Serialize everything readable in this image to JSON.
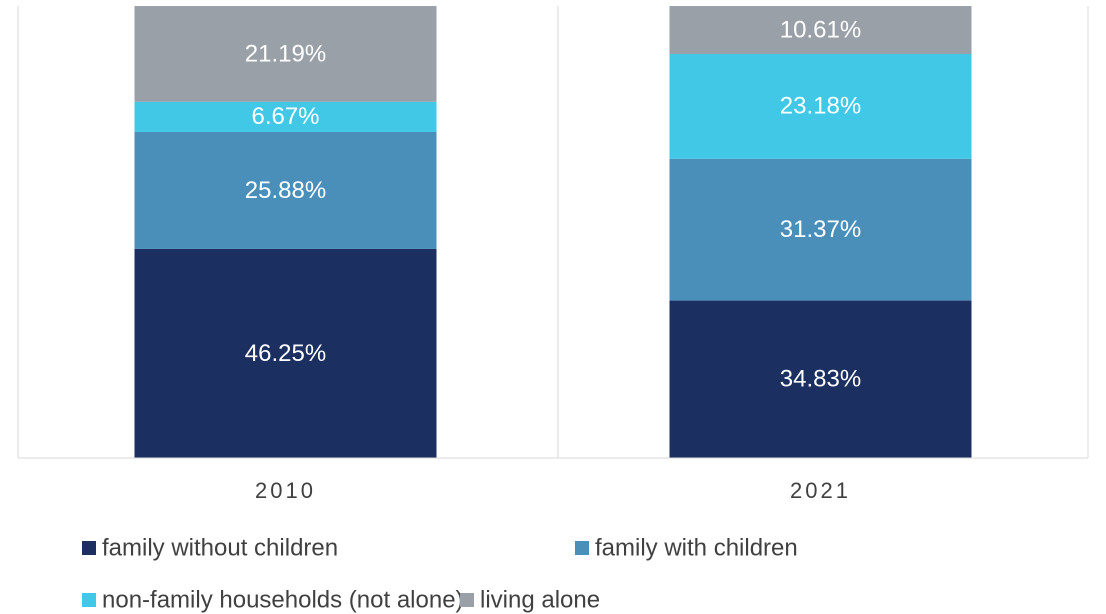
{
  "chart_data": {
    "type": "stacked_bar",
    "categories": [
      "2010",
      "2021"
    ],
    "ylim": [
      0,
      100
    ],
    "series": [
      {
        "name": "family without children",
        "color": "#1b3060",
        "values": [
          46.25,
          34.83
        ],
        "value_labels": [
          "46.25%",
          "34.83%"
        ]
      },
      {
        "name": "family with children",
        "color": "#4a8fb9",
        "values": [
          25.88,
          31.37
        ],
        "value_labels": [
          "25.88%",
          "31.37%"
        ]
      },
      {
        "name": "non-family households (not alone)",
        "color": "#41c8e6",
        "values": [
          6.67,
          23.18
        ],
        "value_labels": [
          "6.67%",
          "23.18%"
        ]
      },
      {
        "name": "living alone",
        "color": "#9aa0a8",
        "values": [
          21.19,
          10.61
        ],
        "value_labels": [
          "21.19%",
          "10.61%"
        ]
      }
    ],
    "legend": "bottom"
  }
}
